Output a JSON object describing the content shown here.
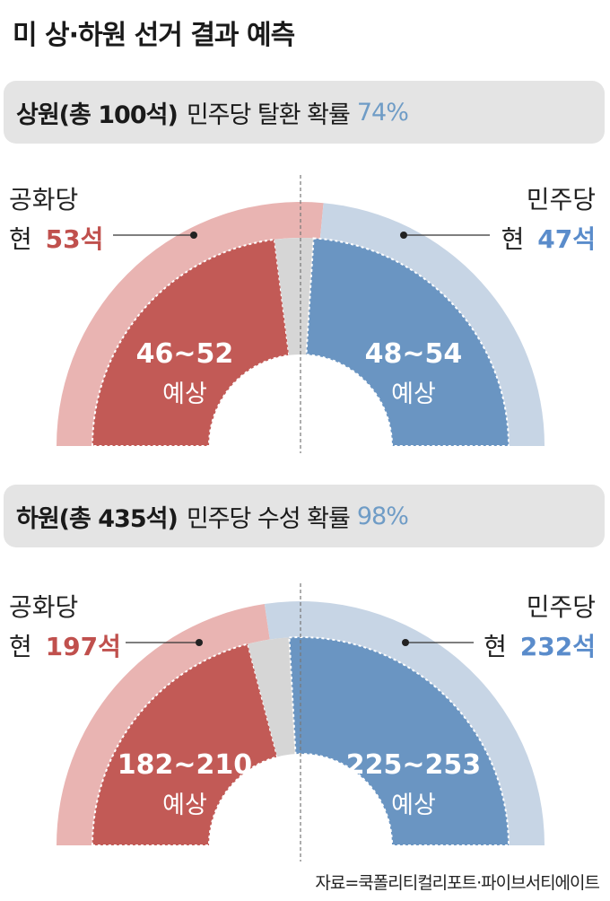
{
  "title": "미 상·하원 선거 결과 예측",
  "colors": {
    "rep_current": "#e9b4b2",
    "rep_forecast": "#c25a56",
    "dem_current": "#c7d5e5",
    "dem_forecast": "#6a95c2",
    "uncertain": "#d6d6d6",
    "rep_text": "#c0504d",
    "dem_text": "#5a8ccb"
  },
  "senate": {
    "chamber": "상원(총 100석)",
    "description": "민주당 탈환 확률",
    "probability": "74%",
    "rep_party": "공화당",
    "rep_prefix": "현",
    "rep_current": "53석",
    "dem_party": "민주당",
    "dem_prefix": "현",
    "dem_current": "47석",
    "rep_forecast": "46~52",
    "dem_forecast": "48~54",
    "forecast_word": "예상"
  },
  "house": {
    "chamber": "하원(총 435석)",
    "description": "민주당 수성 확률",
    "probability": "98%",
    "rep_party": "공화당",
    "rep_prefix": "현",
    "rep_current": "197석",
    "dem_party": "민주당",
    "dem_prefix": "현",
    "dem_current": "232석",
    "rep_forecast": "182~210",
    "dem_forecast": "225~253",
    "forecast_word": "예상"
  },
  "source": "자료=쿡폴리티컬리포트·파이브서티에이트",
  "chart_data": [
    {
      "type": "pie",
      "title": "상원(총 100석)",
      "total": 100,
      "current": {
        "공화당": 53,
        "민주당": 47
      },
      "forecast": {
        "공화당": [
          46,
          52
        ],
        "민주당": [
          48,
          54
        ]
      },
      "dem_win_probability": 74
    },
    {
      "type": "pie",
      "title": "하원(총 435석)",
      "total": 435,
      "current": {
        "공화당": 197,
        "민주당": 232
      },
      "forecast": {
        "공화당": [
          182,
          210
        ],
        "민주당": [
          225,
          253
        ]
      },
      "dem_hold_probability": 98
    }
  ]
}
